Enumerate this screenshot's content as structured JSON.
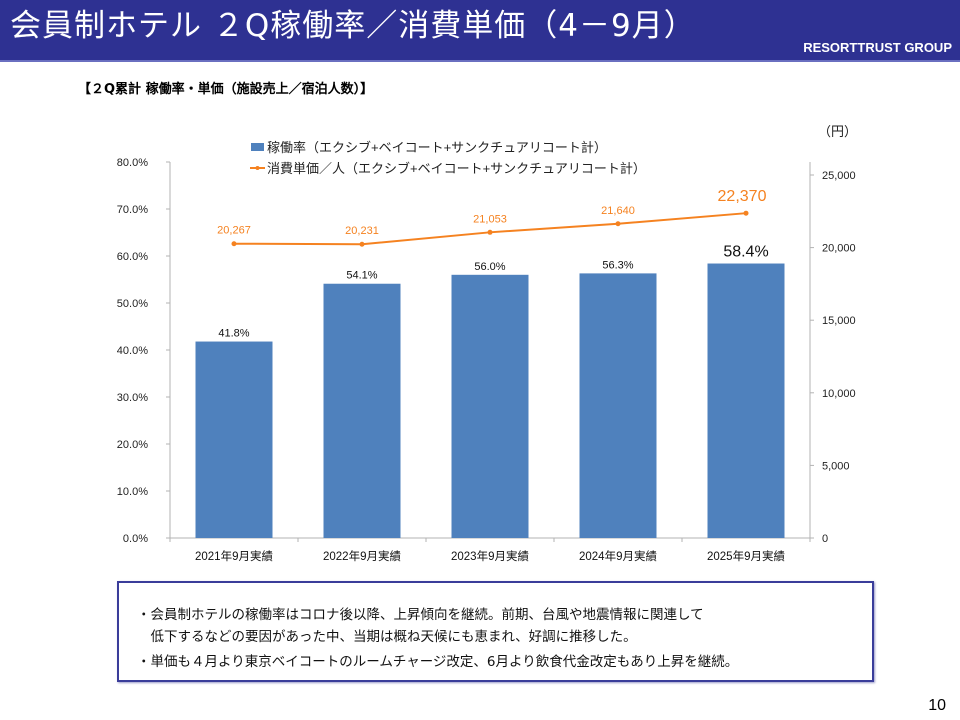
{
  "header": {
    "title": "会員制ホテル ２Q稼働率／消費単価（4－9月）",
    "brand": "RESORTTRUST GROUP",
    "background_color": "#2e3192"
  },
  "subtitle": "【２Q累計 稼働率・単価（施設売上／宿泊人数）】",
  "chart_data": {
    "type": "bar",
    "title": "",
    "categories": [
      "2021年9月実績",
      "2022年9月実績",
      "2023年9月実績",
      "2024年9月実績",
      "2025年9月実績"
    ],
    "series": [
      {
        "name": "稼働率（エクシブ+ベイコート+サンクチュアリコート計）",
        "type": "bar",
        "axis": "left",
        "color": "#4f81bd",
        "values": [
          41.8,
          54.1,
          56.0,
          56.3,
          58.4
        ],
        "labels": [
          "41.8%",
          "54.1%",
          "56.0%",
          "56.3%",
          "58.4%"
        ]
      },
      {
        "name": "消費単価／人（エクシブ+ベイコート+サンクチュアリコート計）",
        "type": "line",
        "axis": "right",
        "color": "#f58220",
        "values": [
          20267,
          20231,
          21053,
          21640,
          22370
        ],
        "labels": [
          "20,267",
          "20,231",
          "21,053",
          "21,640",
          "22,370"
        ]
      }
    ],
    "left_axis": {
      "label": "",
      "ylim": [
        0,
        80
      ],
      "ticks": [
        "0.0%",
        "10.0%",
        "20.0%",
        "30.0%",
        "40.0%",
        "50.0%",
        "60.0%",
        "70.0%",
        "80.0%"
      ]
    },
    "right_axis": {
      "label": "（円）",
      "ylim": [
        0,
        26000
      ],
      "ticks": [
        "0",
        "5,000",
        "10,000",
        "15,000",
        "20,000",
        "25,000"
      ],
      "tick_values": [
        0,
        5000,
        10000,
        15000,
        20000,
        25000
      ]
    },
    "xlabel": "",
    "grid": false,
    "legend_position": "top",
    "highlight_last": true
  },
  "comments": [
    "・会員制ホテルの稼働率はコロナ後以降、上昇傾向を継続。前期、台風や地震情報に関連して",
    "　低下するなどの要因があった中、当期は概ね天候にも恵まれ、好調に推移した。",
    "・単価も４月より東京ベイコートのルームチャージ改定、6月より飲食代金改定もあり上昇を継続。"
  ],
  "page_number": "10"
}
